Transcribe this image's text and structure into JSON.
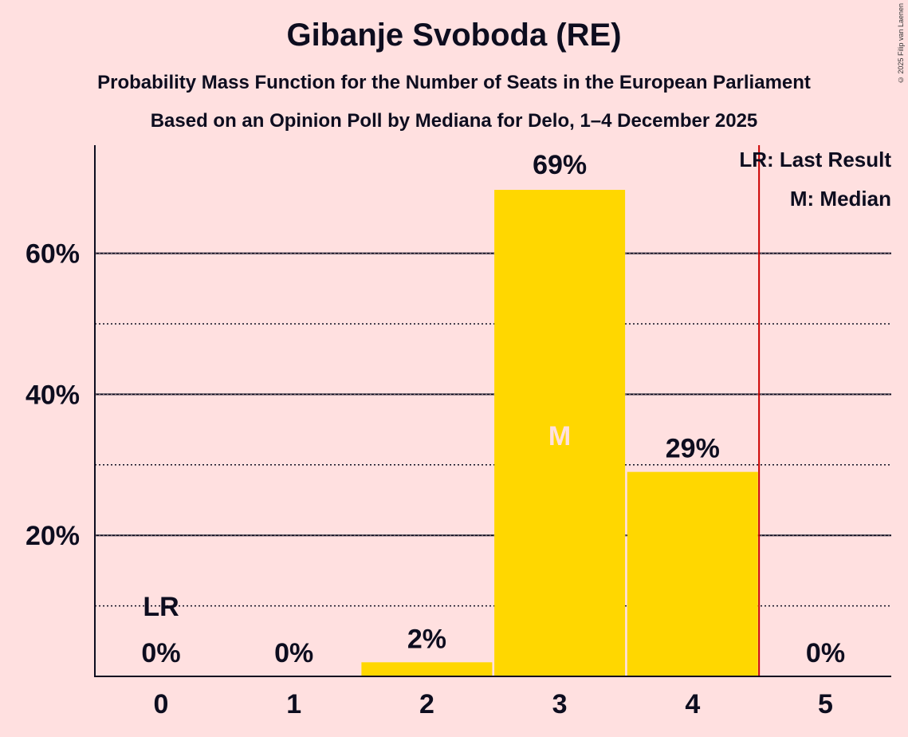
{
  "header": {
    "title": "Gibanje Svoboda (RE)",
    "subtitle": "Probability Mass Function for the Number of Seats in the European Parliament",
    "source": "Based on an Opinion Poll by Mediana for Delo, 1–4 December 2025",
    "copyright": "© 2025 Filip van Laenen"
  },
  "legend": {
    "last_result": "LR: Last Result",
    "median": "M: Median"
  },
  "colors": {
    "bar": "#FFD700",
    "background": "#FFE0E0",
    "last_result_line": "#CC0000",
    "text": "#0d0d1f"
  },
  "chart_data": {
    "type": "bar",
    "title": "Gibanje Svoboda (RE)",
    "xlabel": "",
    "ylabel": "",
    "categories": [
      "0",
      "1",
      "2",
      "3",
      "4",
      "5"
    ],
    "values": [
      0,
      0,
      2,
      69,
      29,
      0
    ],
    "value_labels": [
      "0%",
      "0%",
      "2%",
      "69%",
      "29%",
      "0%"
    ],
    "y_ticks": [
      {
        "value": 20,
        "label": "20%"
      },
      {
        "value": 40,
        "label": "40%"
      },
      {
        "value": 60,
        "label": "60%"
      }
    ],
    "minor_gridlines": [
      10,
      30,
      50
    ],
    "ylim": [
      0,
      75
    ],
    "median_seat": 3,
    "median_marker": "M",
    "last_result_seat": 0,
    "last_result_marker": "LR",
    "last_result_line_x": 4.5
  }
}
